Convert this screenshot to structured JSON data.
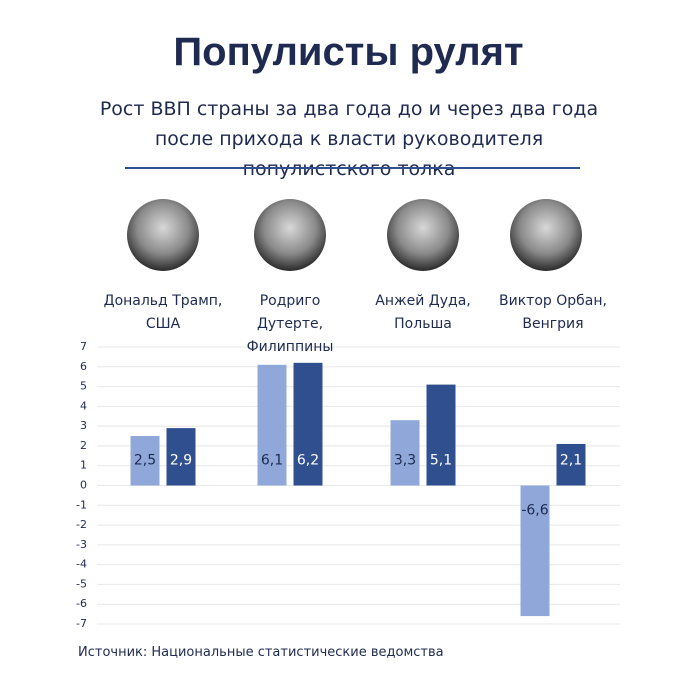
{
  "chart_data": {
    "type": "bar",
    "title": "Популисты рулят",
    "subtitle": "Рост ВВП страны за два года до и через два года после прихода к власти руководителя популистского толка",
    "categories": [
      "Дональд Трамп, США",
      "Родриго Дутерте, Филиппины",
      "Анжей Дуда, Польша",
      "Виктор Орбан, Венгрия"
    ],
    "series": [
      {
        "color": "#8fa8d9",
        "values": [
          2.5,
          6.1,
          3.3,
          -6.6
        ],
        "value_labels": [
          "2,5",
          "6,1",
          "3,3",
          "-6,6"
        ]
      },
      {
        "color": "#2f4f8f",
        "values": [
          2.9,
          6.2,
          5.1,
          2.1
        ],
        "value_labels": [
          "2,9",
          "6,2",
          "5,1",
          "2,1"
        ]
      }
    ],
    "ylim": [
      -7,
      7
    ],
    "yticks": [
      -7,
      -6,
      -5,
      -4,
      -3,
      -2,
      -1,
      0,
      1,
      2,
      3,
      4,
      5,
      6,
      7
    ],
    "grid": true,
    "source": "Источник: Национальные статистические ведомства"
  }
}
